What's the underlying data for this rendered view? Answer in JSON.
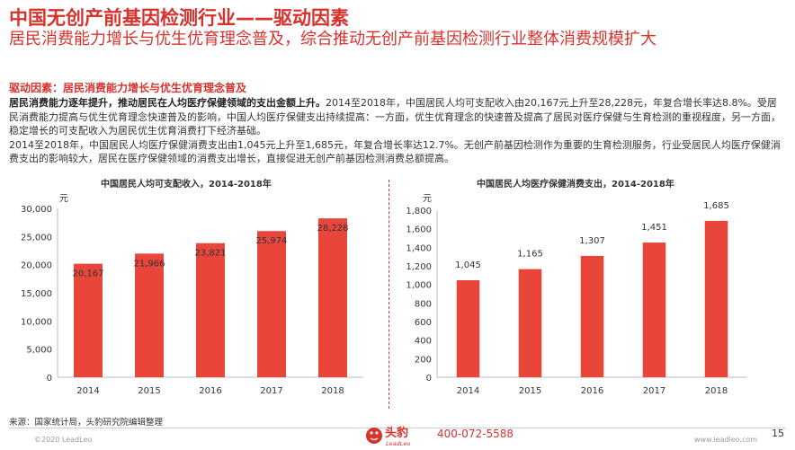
{
  "header": {
    "title": "中国无创产前基因检测行业——驱动因素",
    "subtitle": "居民消费能力增长与优生优育理念普及，综合推动无创产前基因检测行业整体消费规模扩大"
  },
  "section": {
    "heading": "驱动因素：居民消费能力增长与优生优育理念普及",
    "lead_bold": "居民消费能力逐年提升，推动居民在人均医疗保健领域的支出金额上升。",
    "paragraph1_rest": "2014至2018年，中国居民人均可支配收入由20,167元上升至28,228元，年复合增长率达8.8%。受居民消费能力提高与优生优育理念快速普及的影响，中国人均医疗保健支出持续提高：一方面，优生优育理念的快速普及提高了居民对医疗保健与生育检测的重视程度，另一方面，稳定增长的可支配收入为居民优生优育消费打下经济基础。",
    "paragraph2": "2014至2018年，中国居民人均医疗保健消费支出由1,045元上升至1,685元，年复合增长率达12.7%。无创产前基因检测作为重要的生育检测服务，行业受居民人均医疗保健消费支出的影响较大，居民在医疗保健领域的消费支出增长，直接促进无创产前基因检测消费总额提高。"
  },
  "colors": {
    "accent": "#d7322d",
    "bar": "#e8463b"
  },
  "chart_data": [
    {
      "type": "bar",
      "title": "中国居民人均可支配收入，2014-2018年",
      "unit": "元",
      "categories": [
        "2014",
        "2015",
        "2016",
        "2017",
        "2018"
      ],
      "values": [
        20167,
        21966,
        23821,
        25974,
        28228
      ],
      "value_labels": [
        "20,167",
        "21,966",
        "23,821",
        "25,974",
        "28,228"
      ],
      "ylim": [
        0,
        30000
      ],
      "yticks": [
        0,
        5000,
        10000,
        15000,
        20000,
        25000,
        30000
      ],
      "ytick_labels": [
        "0",
        "5,000",
        "10,000",
        "15,000",
        "20,000",
        "25,000",
        "30,000"
      ],
      "grid": false,
      "legend": "none"
    },
    {
      "type": "bar",
      "title": "中国居民人均医疗保健消费支出，2014-2018年",
      "unit": "元",
      "categories": [
        "2014",
        "2015",
        "2016",
        "2017",
        "2018"
      ],
      "values": [
        1045,
        1165,
        1307,
        1451,
        1685
      ],
      "value_labels": [
        "1,045",
        "1,165",
        "1,307",
        "1,451",
        "1,685"
      ],
      "ylim": [
        0,
        1800
      ],
      "yticks": [
        0,
        200,
        400,
        600,
        800,
        1000,
        1200,
        1400,
        1600,
        1800
      ],
      "ytick_labels": [
        "0",
        "200",
        "400",
        "600",
        "800",
        "1,000",
        "1,200",
        "1,400",
        "1,600",
        "1,800"
      ],
      "grid": false,
      "legend": "none"
    }
  ],
  "footer": {
    "source": "来源：国家统计局，头豹研究院编辑整理",
    "copyright": "©2020 LeadLeo",
    "logo_cn": "头豹",
    "logo_en": "LeadLeo",
    "phone": "400-072-5588",
    "page_number": "15",
    "website": "www.leadleo.com"
  }
}
